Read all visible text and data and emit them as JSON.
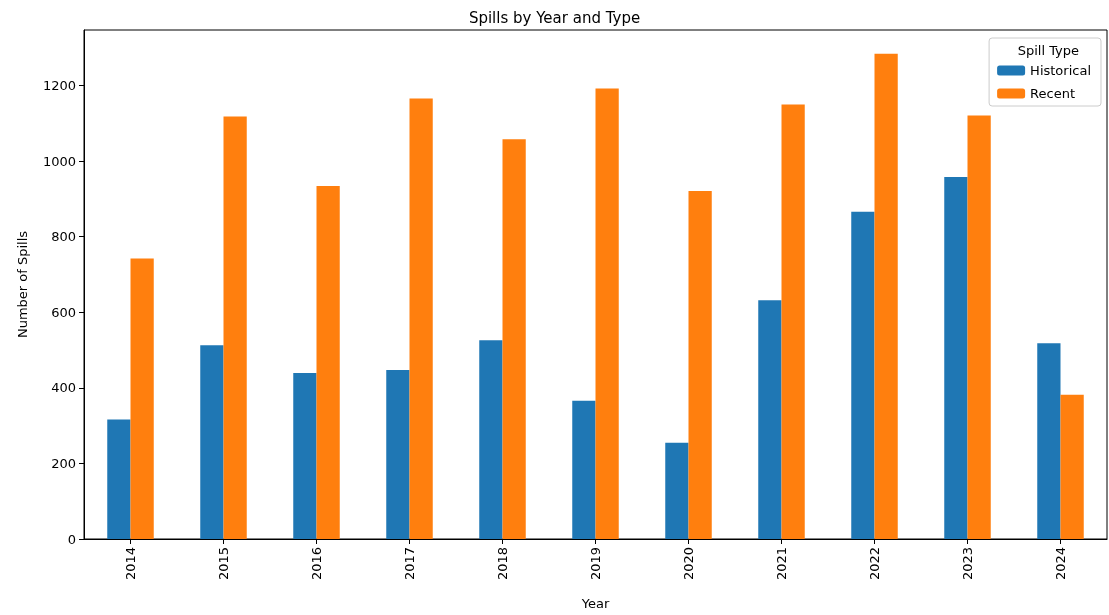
{
  "chart_data": {
    "type": "bar",
    "title": "Spills by Year and Type",
    "xlabel": "Year",
    "ylabel": "Number of Spills",
    "legend_title": "Spill Type",
    "categories": [
      "2014",
      "2015",
      "2016",
      "2017",
      "2018",
      "2019",
      "2020",
      "2021",
      "2022",
      "2023",
      "2024"
    ],
    "series": [
      {
        "name": "Historical",
        "color": "#1f77b4",
        "values": [
          316,
          513,
          439,
          447,
          526,
          366,
          255,
          632,
          866,
          958,
          518
        ]
      },
      {
        "name": "Recent",
        "color": "#ff7f0e",
        "values": [
          742,
          1118,
          934,
          1166,
          1058,
          1192,
          921,
          1150,
          1284,
          1121,
          382
        ]
      }
    ],
    "ylim": [
      0,
      1347
    ],
    "yticks": [
      0,
      200,
      400,
      600,
      800,
      1000,
      1200
    ],
    "grid": false,
    "legend": "top right"
  }
}
